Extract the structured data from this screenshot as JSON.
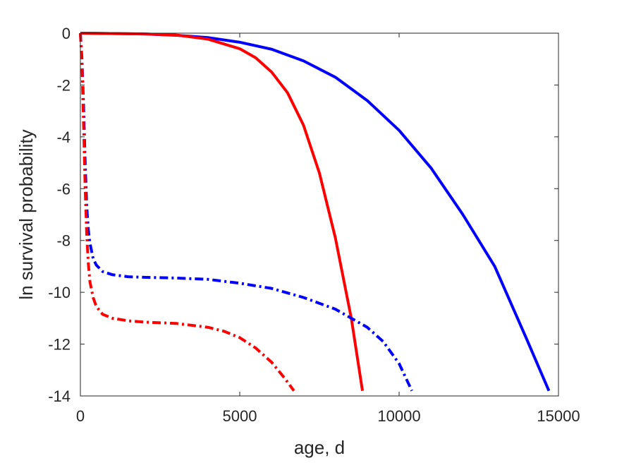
{
  "chart_data": {
    "type": "line",
    "xlabel": "age, d",
    "ylabel": "ln survival probability",
    "xlim": [
      0,
      15000
    ],
    "ylim": [
      -14,
      0
    ],
    "x_ticks": [
      0,
      5000,
      10000,
      15000
    ],
    "y_ticks": [
      0,
      -2,
      -4,
      -6,
      -8,
      -10,
      -12,
      -14
    ],
    "x_tick_labels": [
      "0",
      "5000",
      "10000",
      "15000"
    ],
    "y_tick_labels": [
      "0",
      "-2",
      "-4",
      "-6",
      "-8",
      "-10",
      "-12",
      "-14"
    ],
    "grid": false,
    "box": true,
    "series": [
      {
        "color": "#0000ff",
        "line_style": "solid",
        "x": [
          0,
          2000,
          3000,
          4000,
          5000,
          6000,
          7000,
          8000,
          9000,
          10000,
          11000,
          12000,
          13000,
          14000,
          14700
        ],
        "y": [
          0,
          -0.03,
          -0.08,
          -0.17,
          -0.35,
          -0.62,
          -1.07,
          -1.7,
          -2.6,
          -3.75,
          -5.2,
          -7.0,
          -9.0,
          -11.8,
          -13.8
        ]
      },
      {
        "color": "#ff0000",
        "line_style": "solid",
        "x": [
          0,
          2000,
          3000,
          4000,
          5000,
          5500,
          6000,
          6500,
          7000,
          7500,
          8000,
          8500,
          8850
        ],
        "y": [
          0,
          -0.03,
          -0.07,
          -0.23,
          -0.6,
          -0.95,
          -1.5,
          -2.3,
          -3.55,
          -5.4,
          -7.9,
          -11.0,
          -13.8
        ]
      },
      {
        "color": "#0000ff",
        "line_style": "dashdot",
        "x": [
          0,
          50,
          100,
          150,
          200,
          250,
          300,
          400,
          500,
          700,
          1000,
          1500,
          2000,
          3000,
          4000,
          5000,
          6000,
          7000,
          8000,
          9000,
          9500,
          10000,
          10400
        ],
        "y": [
          0,
          -1.0,
          -2.8,
          -5.0,
          -6.7,
          -7.6,
          -8.1,
          -8.7,
          -8.95,
          -9.2,
          -9.32,
          -9.4,
          -9.42,
          -9.45,
          -9.5,
          -9.65,
          -9.85,
          -10.2,
          -10.65,
          -11.35,
          -11.9,
          -12.75,
          -13.8
        ]
      },
      {
        "color": "#ff0000",
        "line_style": "dashdot",
        "x": [
          0,
          50,
          100,
          150,
          200,
          250,
          300,
          400,
          500,
          700,
          1000,
          1500,
          2000,
          3000,
          4000,
          4500,
          5000,
          5500,
          6000,
          6400,
          6700
        ],
        "y": [
          0,
          -1.2,
          -3.5,
          -6.0,
          -7.8,
          -8.9,
          -9.6,
          -10.2,
          -10.55,
          -10.85,
          -11.0,
          -11.1,
          -11.15,
          -11.2,
          -11.35,
          -11.5,
          -11.75,
          -12.15,
          -12.7,
          -13.3,
          -13.8
        ]
      }
    ]
  }
}
